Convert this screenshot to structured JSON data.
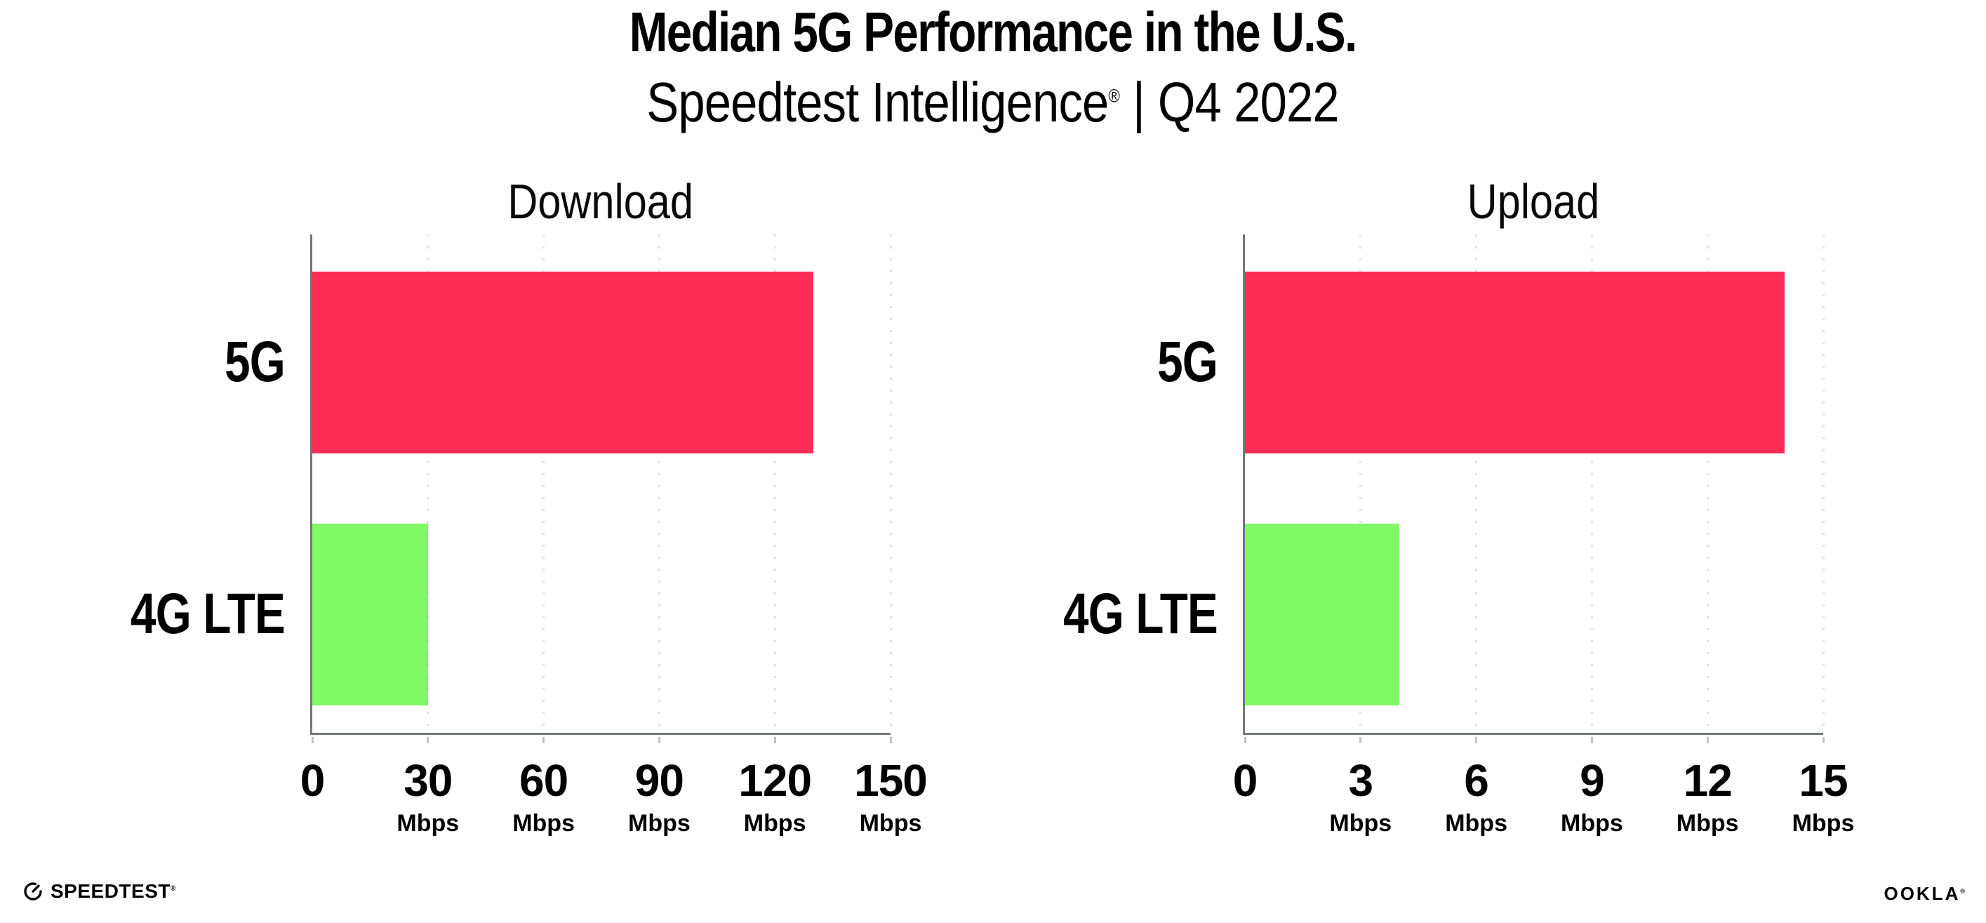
{
  "page": {
    "title": "Median 5G Performance in the U.S.",
    "subtitle": {
      "product": "Speedtest Intelligence",
      "registered_mark": "®",
      "separator": "|",
      "period": "Q4 2022"
    }
  },
  "colors": {
    "bar_5g": "#ff2d55",
    "bar_4g_lte": "#7ffa64",
    "axis": "#73767d",
    "gridline": "#e0e1ec",
    "tick_mark": "#c2c4cc",
    "text": "#000000",
    "background": "#ffffff"
  },
  "chart_data": [
    {
      "type": "bar",
      "orientation": "horizontal",
      "title": "Download",
      "categories": [
        "5G",
        "4G LTE"
      ],
      "values": [
        130,
        30
      ],
      "unit": "Mbps",
      "xlim": [
        0,
        150
      ],
      "xticks": [
        0,
        30,
        60,
        90,
        120,
        150
      ],
      "xtick_unit_label": "Mbps",
      "bar_colors": [
        "#ff2d55",
        "#7ffa64"
      ],
      "grid": "vertical-dotted",
      "legend": "none"
    },
    {
      "type": "bar",
      "orientation": "horizontal",
      "title": "Upload",
      "categories": [
        "5G",
        "4G LTE"
      ],
      "values": [
        14,
        4
      ],
      "unit": "Mbps",
      "xlim": [
        0,
        15
      ],
      "xticks": [
        0,
        3,
        6,
        9,
        12,
        15
      ],
      "xtick_unit_label": "Mbps",
      "bar_colors": [
        "#ff2d55",
        "#7ffa64"
      ],
      "grid": "vertical-dotted",
      "legend": "none"
    }
  ],
  "footer": {
    "speedtest_wordmark": "SPEEDTEST",
    "speedtest_mark": "®",
    "ookla_wordmark": "OOKLA",
    "ookla_mark": "®"
  }
}
